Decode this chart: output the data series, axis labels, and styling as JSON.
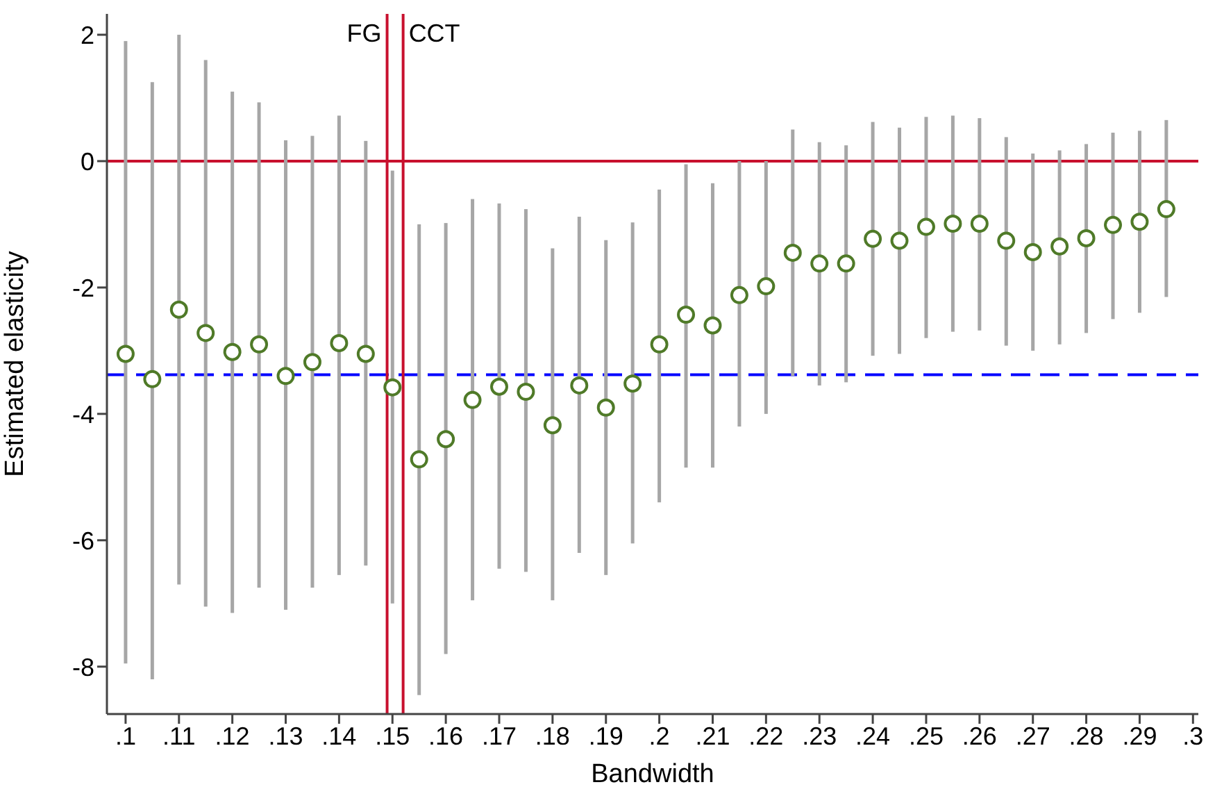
{
  "chart_data": {
    "type": "scatter",
    "xlabel": "Bandwidth",
    "ylabel": "Estimated elasticity",
    "x": [
      0.1,
      0.105,
      0.11,
      0.115,
      0.12,
      0.125,
      0.13,
      0.135,
      0.14,
      0.145,
      0.15,
      0.155,
      0.16,
      0.165,
      0.17,
      0.175,
      0.18,
      0.185,
      0.19,
      0.195,
      0.2,
      0.205,
      0.21,
      0.215,
      0.22,
      0.225,
      0.23,
      0.235,
      0.24,
      0.245,
      0.25,
      0.255,
      0.26,
      0.265,
      0.27,
      0.275,
      0.28,
      0.285,
      0.29,
      0.295
    ],
    "series": [
      {
        "color": "#4f7a28",
        "values": [
          -3.05,
          -3.45,
          -2.35,
          -2.72,
          -3.02,
          -2.9,
          -3.4,
          -3.18,
          -2.88,
          -3.05,
          -3.58,
          -4.72,
          -4.4,
          -3.78,
          -3.57,
          -3.65,
          -4.18,
          -3.55,
          -3.9,
          -3.52,
          -2.9,
          -2.43,
          -2.6,
          -2.12,
          -1.98,
          -1.45,
          -1.62,
          -1.62,
          -1.23,
          -1.26,
          -1.04,
          -0.99,
          -0.99,
          -1.26,
          -1.44,
          -1.35,
          -1.22,
          -1.01,
          -0.96,
          -0.76
        ],
        "errors": [
          [
            -7.95,
            1.9
          ],
          [
            -8.2,
            1.25
          ],
          [
            -6.7,
            2.0
          ],
          [
            -7.05,
            1.6
          ],
          [
            -7.15,
            1.1
          ],
          [
            -6.75,
            0.93
          ],
          [
            -7.1,
            0.33
          ],
          [
            -6.75,
            0.4
          ],
          [
            -6.55,
            0.72
          ],
          [
            -6.4,
            0.32
          ],
          [
            -7.0,
            -0.15
          ],
          [
            -8.45,
            -1.0
          ],
          [
            -7.8,
            -0.98
          ],
          [
            -6.95,
            -0.6
          ],
          [
            -6.45,
            -0.67
          ],
          [
            -6.5,
            -0.76
          ],
          [
            -6.95,
            -1.38
          ],
          [
            -6.2,
            -0.88
          ],
          [
            -6.55,
            -1.25
          ],
          [
            -6.05,
            -0.97
          ],
          [
            -5.4,
            -0.45
          ],
          [
            -4.85,
            -0.05
          ],
          [
            -4.85,
            -0.35
          ],
          [
            -4.2,
            0.0
          ],
          [
            -4.0,
            0.0
          ],
          [
            -3.4,
            0.5
          ],
          [
            -3.55,
            0.3
          ],
          [
            -3.5,
            0.25
          ],
          [
            -3.08,
            0.62
          ],
          [
            -3.05,
            0.53
          ],
          [
            -2.8,
            0.7
          ],
          [
            -2.7,
            0.72
          ],
          [
            -2.68,
            0.68
          ],
          [
            -2.92,
            0.38
          ],
          [
            -3.0,
            0.12
          ],
          [
            -2.9,
            0.17
          ],
          [
            -2.72,
            0.27
          ],
          [
            -2.5,
            0.45
          ],
          [
            -2.4,
            0.48
          ],
          [
            -2.15,
            0.65
          ]
        ]
      }
    ],
    "marker": "circle",
    "xlim": [
      0.0965,
      0.301
    ],
    "xticks": [
      {
        "value": 0.1,
        "label": ".1"
      },
      {
        "value": 0.11,
        "label": ".11"
      },
      {
        "value": 0.12,
        "label": ".12"
      },
      {
        "value": 0.13,
        "label": ".13"
      },
      {
        "value": 0.14,
        "label": ".14"
      },
      {
        "value": 0.15,
        "label": ".15"
      },
      {
        "value": 0.16,
        "label": ".16"
      },
      {
        "value": 0.17,
        "label": ".17"
      },
      {
        "value": 0.18,
        "label": ".18"
      },
      {
        "value": 0.19,
        "label": ".19"
      },
      {
        "value": 0.2,
        "label": ".2"
      },
      {
        "value": 0.21,
        "label": ".21"
      },
      {
        "value": 0.22,
        "label": ".22"
      },
      {
        "value": 0.23,
        "label": ".23"
      },
      {
        "value": 0.24,
        "label": ".24"
      },
      {
        "value": 0.25,
        "label": ".25"
      },
      {
        "value": 0.26,
        "label": ".26"
      },
      {
        "value": 0.27,
        "label": ".27"
      },
      {
        "value": 0.28,
        "label": ".28"
      },
      {
        "value": 0.29,
        "label": ".29"
      },
      {
        "value": 0.3,
        "label": ".3"
      }
    ],
    "ylim": [
      -8.75,
      2.33
    ],
    "yticks": [
      -8,
      -6,
      -4,
      -2,
      0,
      2
    ],
    "ref_lines": [
      {
        "axis": "y",
        "value": 0,
        "color": "#c8102e",
        "line_style": "solid"
      },
      {
        "axis": "y",
        "value": -3.38,
        "color": "#0000ff",
        "line_style": "dashed"
      },
      {
        "axis": "x",
        "value": 0.149,
        "label": "FG",
        "color": "#c8102e",
        "line_style": "solid"
      },
      {
        "axis": "x",
        "value": 0.152,
        "label": "CCT",
        "color": "#c8102e",
        "line_style": "solid"
      }
    ],
    "grid": false,
    "legend": false
  }
}
